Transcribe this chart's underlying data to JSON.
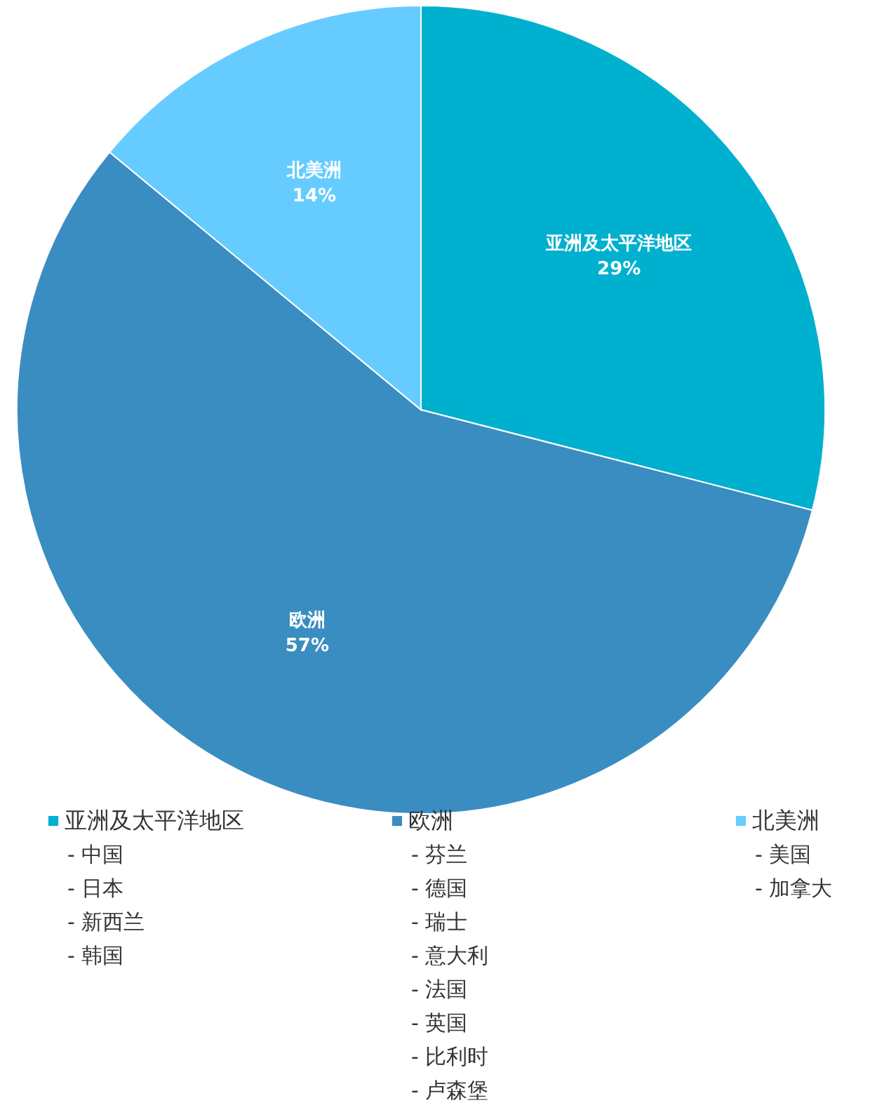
{
  "chart_data": {
    "type": "pie",
    "categories": [
      "亚洲及太平洋地区",
      "欧洲",
      "北美洲"
    ],
    "values": [
      29,
      57,
      14
    ],
    "value_labels": [
      "29%",
      "57%",
      "14%"
    ],
    "colors": [
      "#00b0cf",
      "#3a8dc1",
      "#66ccff"
    ],
    "legend": "bottom",
    "annotations": [
      {
        "text": "-  中国",
        "x": "亚洲及太平洋地区"
      },
      {
        "text": "-  日本",
        "x": "亚洲及太平洋地区"
      },
      {
        "text": "-  新西兰",
        "x": "亚洲及太平洋地区"
      },
      {
        "text": "-  韩国",
        "x": "亚洲及太平洋地区"
      },
      {
        "text": "-  芬兰",
        "x": "欧洲"
      },
      {
        "text": "-  德国",
        "x": "欧洲"
      },
      {
        "text": "-  瑞士",
        "x": "欧洲"
      },
      {
        "text": "-  意大利",
        "x": "欧洲"
      },
      {
        "text": "-  法国",
        "x": "欧洲"
      },
      {
        "text": "-  英国",
        "x": "欧洲"
      },
      {
        "text": "-  比利时",
        "x": "欧洲"
      },
      {
        "text": "-  卢森堡",
        "x": "欧洲"
      },
      {
        "text": "-  美国",
        "x": "北美洲"
      },
      {
        "text": "-  加拿大",
        "x": "北美洲"
      }
    ]
  }
}
